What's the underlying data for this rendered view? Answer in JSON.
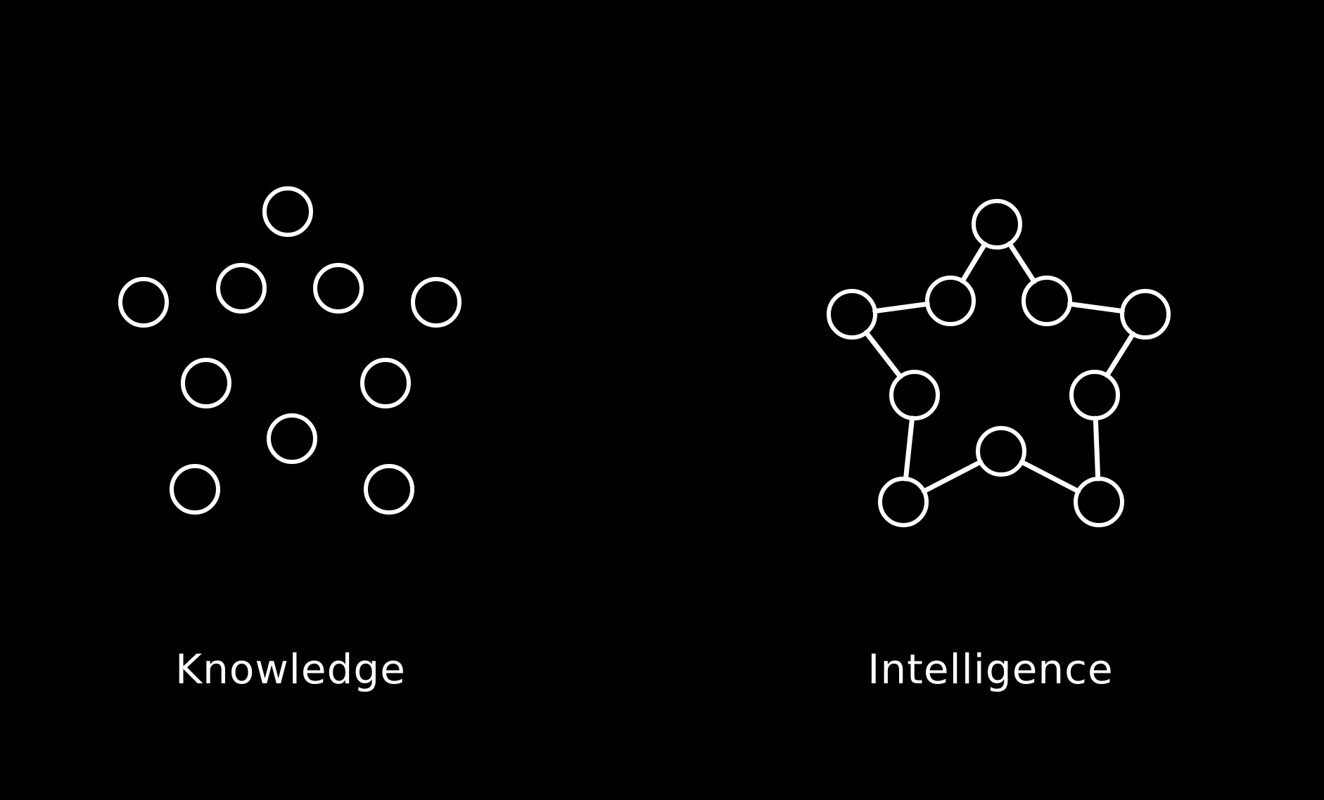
{
  "background": "#000000",
  "stroke_color": "#ffffff",
  "panels": [
    {
      "label": "Knowledge",
      "connected": false
    },
    {
      "label": "Intelligence",
      "connected": true
    }
  ]
}
